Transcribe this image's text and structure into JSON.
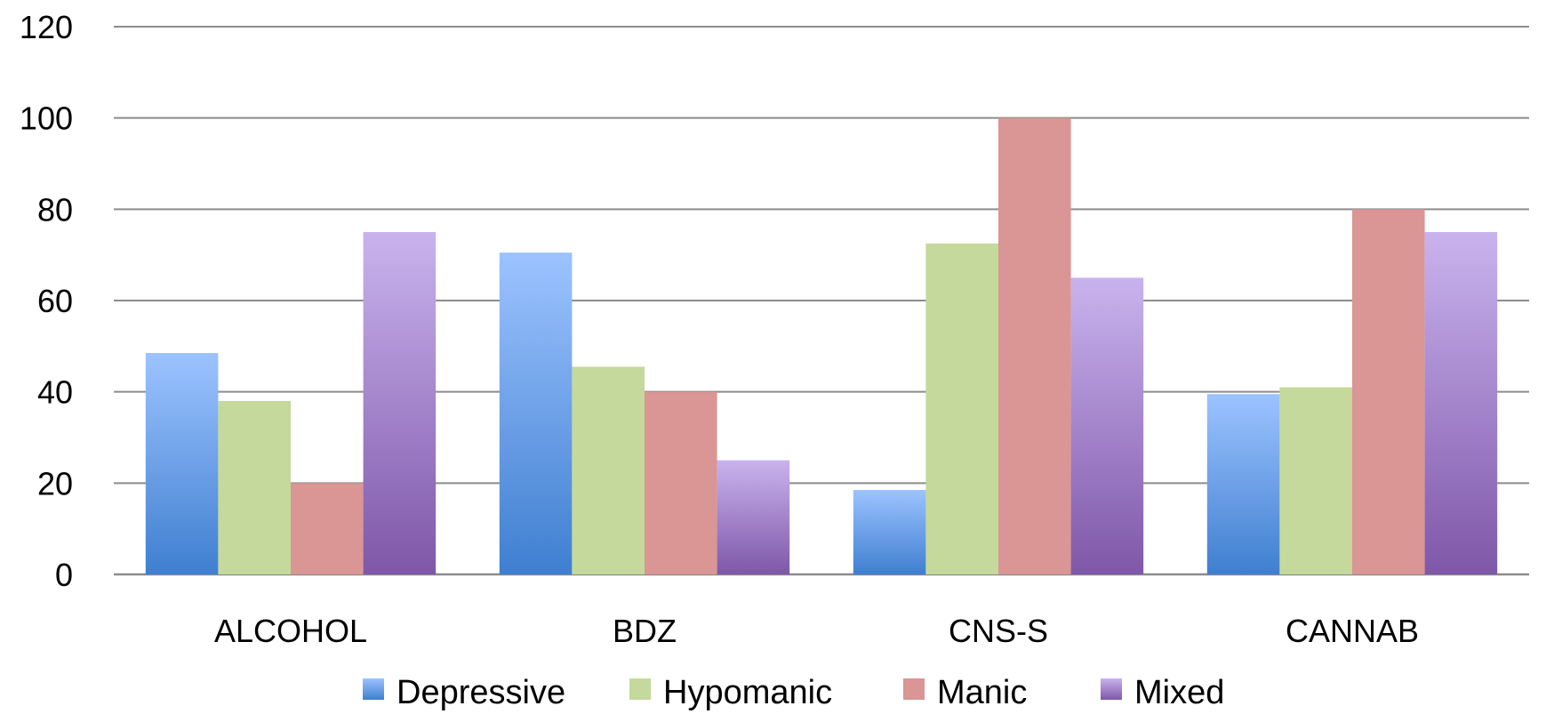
{
  "chart_data": {
    "type": "bar",
    "title": "",
    "xlabel": "",
    "ylabel": "",
    "categories": [
      "ALCOHOL",
      "BDZ",
      "CNS-S",
      "CANNAB"
    ],
    "series": [
      {
        "name": "Depressive",
        "values": [
          48.5,
          70.5,
          18.5,
          39.5
        ],
        "color_top": "#9cc3ff",
        "color_bottom": "#3f7fd0"
      },
      {
        "name": "Hypomanic",
        "values": [
          38,
          45.5,
          72.5,
          41
        ],
        "color_top": "#c4d99b",
        "color_bottom": "#c4d99b"
      },
      {
        "name": "Manic",
        "values": [
          20,
          40,
          100,
          80
        ],
        "color_top": "#d99694",
        "color_bottom": "#d99694"
      },
      {
        "name": "Mixed",
        "values": [
          75,
          25,
          65,
          75
        ],
        "color_top": "#c9b3ee",
        "color_bottom": "#7f57a8"
      }
    ],
    "ylim": [
      0,
      120
    ],
    "yticks": [
      "0",
      "20",
      "40",
      "60",
      "80",
      "100",
      "120"
    ],
    "grid": true,
    "legend_position": "bottom",
    "colors": {
      "axis": "#8c8c8c",
      "grid": "#8c8c8c",
      "text": "#000000"
    }
  }
}
